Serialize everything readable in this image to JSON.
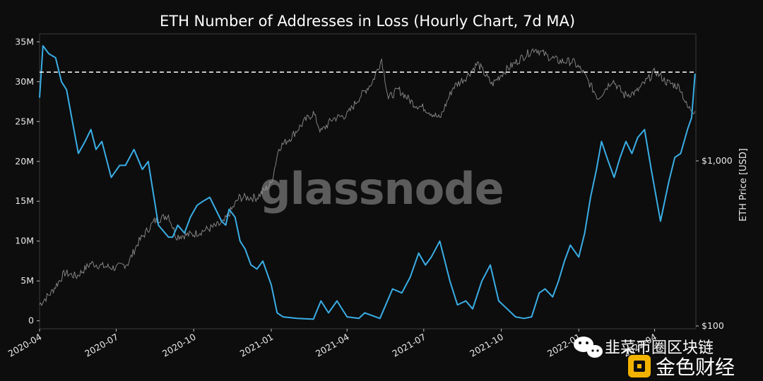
{
  "chart_data": {
    "type": "line",
    "title": "ETH Number of Addresses in Loss (Hourly Chart, 7d MA)",
    "xlabel": "",
    "ylabel_left": "",
    "ylabel_right": "ETH Price [USD]",
    "x_tick_labels": [
      "2020-04",
      "2020-07",
      "2020-10",
      "2021-01",
      "2021-04",
      "2021-07",
      "2021-10",
      "2022-01",
      "2022-04"
    ],
    "y_left_ticks": [
      "0",
      "5M",
      "10M",
      "15M",
      "20M",
      "25M",
      "30M",
      "35M"
    ],
    "y_right_ticks": [
      "$100",
      "$1,000"
    ],
    "ylim_left": [
      -1000000,
      36000000
    ],
    "right_axis_scale": "log",
    "grid": false,
    "reference_line": {
      "value": 31200000,
      "style": "dashed",
      "color": "#ffffff"
    },
    "series": [
      {
        "axis": "left",
        "color": "#3aaee6",
        "points": [
          [
            "2020-04-01",
            28000000
          ],
          [
            "2020-04-05",
            34500000
          ],
          [
            "2020-04-12",
            33500000
          ],
          [
            "2020-04-20",
            33000000
          ],
          [
            "2020-04-27",
            30000000
          ],
          [
            "2020-05-03",
            29000000
          ],
          [
            "2020-05-10",
            25000000
          ],
          [
            "2020-05-17",
            21000000
          ],
          [
            "2020-05-25",
            22500000
          ],
          [
            "2020-06-01",
            24000000
          ],
          [
            "2020-06-07",
            21500000
          ],
          [
            "2020-06-14",
            22500000
          ],
          [
            "2020-06-25",
            18000000
          ],
          [
            "2020-07-05",
            19500000
          ],
          [
            "2020-07-12",
            19500000
          ],
          [
            "2020-07-22",
            21500000
          ],
          [
            "2020-08-01",
            19000000
          ],
          [
            "2020-08-08",
            20000000
          ],
          [
            "2020-08-20",
            12000000
          ],
          [
            "2020-09-01",
            10500000
          ],
          [
            "2020-09-06",
            10500000
          ],
          [
            "2020-09-12",
            12000000
          ],
          [
            "2020-09-20",
            11000000
          ],
          [
            "2020-09-27",
            13000000
          ],
          [
            "2020-10-05",
            14500000
          ],
          [
            "2020-10-12",
            15000000
          ],
          [
            "2020-10-20",
            15500000
          ],
          [
            "2020-10-27",
            14000000
          ],
          [
            "2020-11-03",
            12500000
          ],
          [
            "2020-11-08",
            12000000
          ],
          [
            "2020-11-12",
            14000000
          ],
          [
            "2020-11-19",
            13000000
          ],
          [
            "2020-11-25",
            10000000
          ],
          [
            "2020-12-01",
            9000000
          ],
          [
            "2020-12-08",
            7000000
          ],
          [
            "2020-12-15",
            6500000
          ],
          [
            "2020-12-22",
            7500000
          ],
          [
            "2021-01-01",
            4500000
          ],
          [
            "2021-01-08",
            1000000
          ],
          [
            "2021-01-15",
            500000
          ],
          [
            "2021-02-01",
            300000
          ],
          [
            "2021-02-20",
            200000
          ],
          [
            "2021-03-01",
            2500000
          ],
          [
            "2021-03-10",
            1000000
          ],
          [
            "2021-03-20",
            2500000
          ],
          [
            "2021-04-01",
            500000
          ],
          [
            "2021-04-15",
            300000
          ],
          [
            "2021-04-22",
            1000000
          ],
          [
            "2021-05-10",
            300000
          ],
          [
            "2021-05-25",
            4000000
          ],
          [
            "2021-06-05",
            3500000
          ],
          [
            "2021-06-15",
            5500000
          ],
          [
            "2021-06-25",
            8500000
          ],
          [
            "2021-07-03",
            7000000
          ],
          [
            "2021-07-10",
            8000000
          ],
          [
            "2021-07-20",
            10000000
          ],
          [
            "2021-08-01",
            5000000
          ],
          [
            "2021-08-10",
            2000000
          ],
          [
            "2021-08-20",
            2500000
          ],
          [
            "2021-08-28",
            1500000
          ],
          [
            "2021-09-08",
            5000000
          ],
          [
            "2021-09-18",
            7000000
          ],
          [
            "2021-09-28",
            2500000
          ],
          [
            "2021-10-08",
            1500000
          ],
          [
            "2021-10-18",
            500000
          ],
          [
            "2021-10-28",
            300000
          ],
          [
            "2021-11-06",
            500000
          ],
          [
            "2021-11-15",
            3500000
          ],
          [
            "2021-11-22",
            4000000
          ],
          [
            "2021-12-01",
            3000000
          ],
          [
            "2021-12-08",
            5000000
          ],
          [
            "2021-12-15",
            7500000
          ],
          [
            "2021-12-22",
            9500000
          ],
          [
            "2022-01-01",
            8000000
          ],
          [
            "2022-01-08",
            11000000
          ],
          [
            "2022-01-15",
            15500000
          ],
          [
            "2022-01-22",
            19000000
          ],
          [
            "2022-01-28",
            22500000
          ],
          [
            "2022-02-05",
            20000000
          ],
          [
            "2022-02-12",
            18000000
          ],
          [
            "2022-02-19",
            20500000
          ],
          [
            "2022-02-26",
            22500000
          ],
          [
            "2022-03-05",
            21000000
          ],
          [
            "2022-03-12",
            23000000
          ],
          [
            "2022-03-20",
            24000000
          ],
          [
            "2022-03-28",
            19000000
          ],
          [
            "2022-04-08",
            12500000
          ],
          [
            "2022-04-18",
            17500000
          ],
          [
            "2022-04-25",
            20500000
          ],
          [
            "2022-05-02",
            21000000
          ],
          [
            "2022-05-10",
            24000000
          ],
          [
            "2022-05-15",
            25500000
          ],
          [
            "2022-05-19",
            31000000
          ]
        ]
      },
      {
        "axis": "right",
        "color": "#9a9a9a",
        "points": [
          [
            "2020-04-01",
            135
          ],
          [
            "2020-04-15",
            160
          ],
          [
            "2020-05-01",
            210
          ],
          [
            "2020-05-15",
            200
          ],
          [
            "2020-06-01",
            240
          ],
          [
            "2020-06-15",
            230
          ],
          [
            "2020-07-01",
            225
          ],
          [
            "2020-07-15",
            240
          ],
          [
            "2020-07-27",
            320
          ],
          [
            "2020-08-15",
            430
          ],
          [
            "2020-09-01",
            470
          ],
          [
            "2020-09-10",
            350
          ],
          [
            "2020-10-01",
            360
          ],
          [
            "2020-10-20",
            390
          ],
          [
            "2020-11-05",
            420
          ],
          [
            "2020-11-24",
            600
          ],
          [
            "2020-12-15",
            600
          ],
          [
            "2021-01-01",
            730
          ],
          [
            "2021-01-10",
            1200
          ],
          [
            "2021-01-25",
            1400
          ],
          [
            "2021-02-10",
            1750
          ],
          [
            "2021-02-20",
            1950
          ],
          [
            "2021-03-01",
            1500
          ],
          [
            "2021-03-15",
            1800
          ],
          [
            "2021-04-01",
            1900
          ],
          [
            "2021-04-15",
            2400
          ],
          [
            "2021-05-01",
            3000
          ],
          [
            "2021-05-12",
            4150
          ],
          [
            "2021-05-20",
            2400
          ],
          [
            "2021-06-01",
            2700
          ],
          [
            "2021-06-20",
            2200
          ],
          [
            "2021-07-01",
            2100
          ],
          [
            "2021-07-20",
            1800
          ],
          [
            "2021-08-05",
            2800
          ],
          [
            "2021-08-20",
            3200
          ],
          [
            "2021-09-03",
            3900
          ],
          [
            "2021-09-20",
            2900
          ],
          [
            "2021-10-05",
            3500
          ],
          [
            "2021-10-25",
            4200
          ],
          [
            "2021-11-10",
            4800
          ],
          [
            "2021-11-25",
            4300
          ],
          [
            "2021-12-10",
            4000
          ],
          [
            "2021-12-25",
            4000
          ],
          [
            "2022-01-05",
            3500
          ],
          [
            "2022-01-24",
            2400
          ],
          [
            "2022-02-10",
            3100
          ],
          [
            "2022-02-24",
            2500
          ],
          [
            "2022-03-10",
            2600
          ],
          [
            "2022-04-02",
            3500
          ],
          [
            "2022-04-15",
            3000
          ],
          [
            "2022-05-01",
            2800
          ],
          [
            "2022-05-10",
            2100
          ],
          [
            "2022-05-19",
            2000
          ]
        ]
      }
    ]
  },
  "watermark": "glassnode",
  "overlay": {
    "channel_text": "韭菜币圈区块链",
    "brand_text": "金色财经",
    "wechat_icon": "wechat-icon",
    "brand_icon": "jinse-logo-icon"
  }
}
